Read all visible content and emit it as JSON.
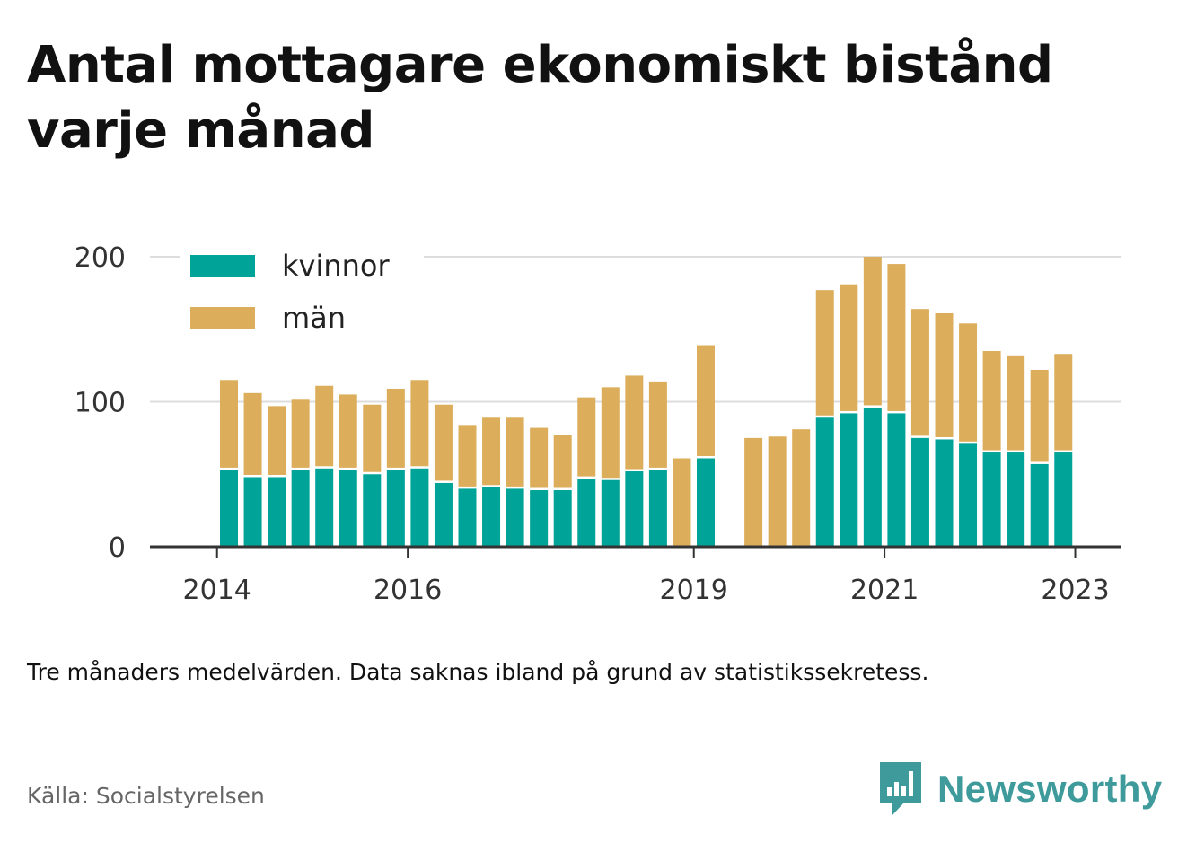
{
  "title": "Antal mottagare ekonomiskt bistånd varje månad",
  "note": "Tre månaders medelvärden. Data saknas ibland på grund av statistikssekretess.",
  "source": "Källa: Socialstyrelsen",
  "brand": {
    "name": "Newsworthy",
    "icon": "newsworthy-logo-icon",
    "color": "#3f9b9b"
  },
  "chart_data": {
    "type": "bar",
    "stacked": true,
    "x_ticks": [
      {
        "label": "2014",
        "period": -1
      },
      {
        "label": "2016",
        "period": 7
      },
      {
        "label": "2019",
        "period": 19
      },
      {
        "label": "2021",
        "period": 27
      },
      {
        "label": "2023",
        "period": 35
      }
    ],
    "y_ticks": [
      0,
      100,
      200
    ],
    "ylim": [
      0,
      200
    ],
    "grid": true,
    "legend_position": "top-left",
    "series": [
      {
        "name": "kvinnor",
        "color": "#00a398",
        "values": [
          53,
          48,
          48,
          53,
          54,
          53,
          50,
          53,
          54,
          44,
          40,
          41,
          40,
          39,
          39,
          47,
          46,
          52,
          53,
          null,
          61,
          null,
          null,
          null,
          null,
          89,
          92,
          96,
          92,
          75,
          74,
          71,
          65,
          65,
          57,
          65
        ]
      },
      {
        "name": "män",
        "color": "#dcae5c",
        "values": [
          62,
          58,
          49,
          49,
          57,
          52,
          48,
          56,
          61,
          54,
          44,
          48,
          49,
          43,
          38,
          56,
          64,
          66,
          61,
          61,
          78,
          null,
          75,
          76,
          81,
          88,
          89,
          104,
          103,
          89,
          87,
          83,
          70,
          67,
          65,
          68
        ]
      }
    ]
  }
}
